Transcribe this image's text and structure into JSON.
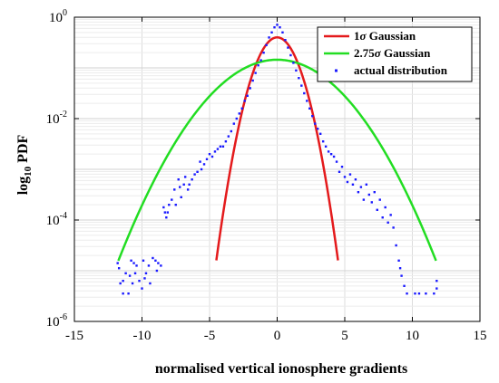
{
  "chart_data": {
    "type": "line",
    "xlabel": "normalised vertical ionosphere gradients",
    "ylabel": {
      "base": "log",
      "subscript": "10",
      "rest": " PDF"
    },
    "xlim": [
      -15,
      15
    ],
    "ylim_log10": [
      -6,
      0
    ],
    "x_scale": "linear",
    "y_scale": "log",
    "x_ticks": [
      "-15",
      "-10",
      "-5",
      "0",
      "5",
      "10",
      "15"
    ],
    "x_tick_values": [
      -15,
      -10,
      -5,
      0,
      5,
      10,
      15
    ],
    "y_ticks": [
      {
        "base": "10",
        "exp": "-6",
        "value": -6
      },
      {
        "base": "10",
        "exp": "-4",
        "value": -4
      },
      {
        "base": "10",
        "exp": "-2",
        "value": -2
      },
      {
        "base": "10",
        "exp": "0",
        "value": 0
      }
    ],
    "grid": true,
    "legend_position": "top-right",
    "series": [
      {
        "name": "1σ Gaussian",
        "name_parts": [
          "1",
          "σ",
          " Gaussian"
        ],
        "kind": "line",
        "color": "#e41a1c",
        "gaussian": {
          "sigma": 1.0,
          "amplitude": 0.4,
          "x_range": [
            -4.5,
            4.5
          ]
        }
      },
      {
        "name": "2.75σ Gaussian",
        "name_parts": [
          "2.75",
          "σ",
          " Gaussian"
        ],
        "kind": "line",
        "color": "#22dd22",
        "gaussian": {
          "sigma": 2.75,
          "amplitude": 0.145,
          "x_range": [
            -11.75,
            11.75
          ]
        }
      },
      {
        "name": "actual distribution",
        "name_parts": [
          "actual distribution",
          "",
          ""
        ],
        "kind": "points",
        "color": "#1a1aff",
        "points": [
          [
            -11.8,
            -4.85
          ],
          [
            -11.7,
            -4.95
          ],
          [
            -11.6,
            -5.25
          ],
          [
            -11.4,
            -5.45
          ],
          [
            -11.2,
            -5.05
          ],
          [
            -11.0,
            -5.45
          ],
          [
            -10.9,
            -5.1
          ],
          [
            -10.8,
            -4.8
          ],
          [
            -10.7,
            -5.25
          ],
          [
            -10.5,
            -5.05
          ],
          [
            -10.4,
            -4.9
          ],
          [
            -10.2,
            -5.2
          ],
          [
            -10.0,
            -5.35
          ],
          [
            -9.9,
            -4.8
          ],
          [
            -9.7,
            -5.05
          ],
          [
            -9.5,
            -4.9
          ],
          [
            -9.4,
            -5.25
          ],
          [
            -9.2,
            -4.75
          ],
          [
            -9.0,
            -4.8
          ],
          [
            -8.9,
            -5.0
          ],
          [
            -8.8,
            -4.85
          ],
          [
            -8.6,
            -4.9
          ],
          [
            -11.4,
            -5.2
          ],
          [
            -10.6,
            -4.85
          ],
          [
            -9.8,
            -5.15
          ],
          [
            -8.4,
            -3.75
          ],
          [
            -8.3,
            -3.85
          ],
          [
            -8.2,
            -3.95
          ],
          [
            -8.1,
            -3.85
          ],
          [
            -8.0,
            -3.7
          ],
          [
            -7.8,
            -3.6
          ],
          [
            -7.6,
            -3.4
          ],
          [
            -7.5,
            -3.7
          ],
          [
            -7.3,
            -3.2
          ],
          [
            -7.2,
            -3.35
          ],
          [
            -7.1,
            -3.55
          ],
          [
            -6.9,
            -3.3
          ],
          [
            -6.8,
            -3.15
          ],
          [
            -6.6,
            -3.4
          ],
          [
            -6.5,
            -3.3
          ],
          [
            -6.3,
            -3.2
          ],
          [
            -6.1,
            -3.1
          ],
          [
            -5.9,
            -3.05
          ],
          [
            -5.7,
            -2.85
          ],
          [
            -5.6,
            -3.0
          ],
          [
            -5.4,
            -2.9
          ],
          [
            -5.2,
            -2.8
          ],
          [
            -5.0,
            -2.7
          ],
          [
            -4.8,
            -2.75
          ],
          [
            -4.6,
            -2.65
          ],
          [
            -4.4,
            -2.6
          ],
          [
            -4.2,
            -2.55
          ],
          [
            -4.0,
            -2.55
          ],
          [
            -3.8,
            -2.45
          ],
          [
            -3.6,
            -2.35
          ],
          [
            -3.4,
            -2.25
          ],
          [
            -3.2,
            -2.1
          ],
          [
            -3.0,
            -2.0
          ],
          [
            -2.8,
            -1.9
          ],
          [
            -2.6,
            -1.8
          ],
          [
            -2.4,
            -1.65
          ],
          [
            -2.2,
            -1.55
          ],
          [
            -2.0,
            -1.4
          ],
          [
            -1.8,
            -1.25
          ],
          [
            -1.6,
            -1.1
          ],
          [
            -1.4,
            -0.95
          ],
          [
            -1.2,
            -0.85
          ],
          [
            -1.0,
            -0.7
          ],
          [
            -0.8,
            -0.55
          ],
          [
            -0.6,
            -0.4
          ],
          [
            -0.4,
            -0.3
          ],
          [
            -0.2,
            -0.2
          ],
          [
            0.0,
            -0.15
          ],
          [
            0.2,
            -0.2
          ],
          [
            0.4,
            -0.3
          ],
          [
            0.6,
            -0.45
          ],
          [
            0.8,
            -0.6
          ],
          [
            1.0,
            -0.75
          ],
          [
            1.2,
            -0.9
          ],
          [
            1.4,
            -1.05
          ],
          [
            1.6,
            -1.2
          ],
          [
            1.8,
            -1.35
          ],
          [
            2.0,
            -1.5
          ],
          [
            2.2,
            -1.65
          ],
          [
            2.4,
            -1.8
          ],
          [
            2.6,
            -1.95
          ],
          [
            2.8,
            -2.1
          ],
          [
            3.0,
            -2.2
          ],
          [
            3.2,
            -2.3
          ],
          [
            3.4,
            -2.45
          ],
          [
            3.6,
            -2.55
          ],
          [
            3.8,
            -2.65
          ],
          [
            4.0,
            -2.7
          ],
          [
            4.2,
            -2.75
          ],
          [
            4.4,
            -2.85
          ],
          [
            4.6,
            -3.05
          ],
          [
            4.8,
            -2.95
          ],
          [
            5.0,
            -3.15
          ],
          [
            5.2,
            -3.25
          ],
          [
            5.4,
            -3.1
          ],
          [
            5.6,
            -3.3
          ],
          [
            5.8,
            -3.2
          ],
          [
            6.0,
            -3.45
          ],
          [
            6.2,
            -3.35
          ],
          [
            6.4,
            -3.6
          ],
          [
            6.6,
            -3.3
          ],
          [
            6.8,
            -3.5
          ],
          [
            7.0,
            -3.65
          ],
          [
            7.2,
            -3.45
          ],
          [
            7.4,
            -3.8
          ],
          [
            7.6,
            -3.6
          ],
          [
            7.8,
            -3.95
          ],
          [
            8.0,
            -3.75
          ],
          [
            8.2,
            -4.05
          ],
          [
            8.4,
            -3.9
          ],
          [
            8.6,
            -4.15
          ],
          [
            8.8,
            -4.5
          ],
          [
            9.0,
            -4.8
          ],
          [
            9.1,
            -4.95
          ],
          [
            9.2,
            -5.1
          ],
          [
            9.4,
            -5.3
          ],
          [
            9.6,
            -5.45
          ],
          [
            10.2,
            -5.45
          ],
          [
            10.5,
            -5.45
          ],
          [
            11.0,
            -5.45
          ],
          [
            11.6,
            -5.45
          ],
          [
            11.8,
            -5.35
          ],
          [
            11.8,
            -5.2
          ]
        ]
      }
    ]
  }
}
